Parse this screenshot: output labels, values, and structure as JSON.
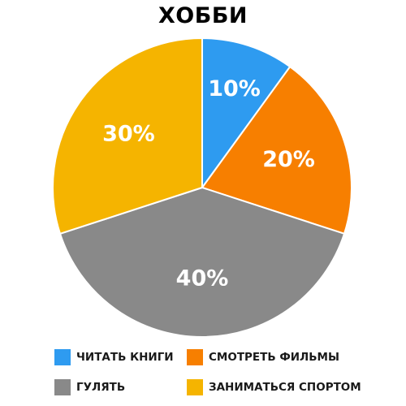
{
  "chart_data": {
    "type": "pie",
    "title": "ХОББИ",
    "categories": [
      "ЧИТАТЬ КНИГИ",
      "СМОТРЕТЬ ФИЛЬМЫ",
      "ГУЛЯТЬ",
      "ЗАНИМАТЬСЯ СПОРТОМ"
    ],
    "values": [
      10,
      20,
      40,
      30
    ],
    "data_labels": [
      "10%",
      "20%",
      "40%",
      "30%"
    ],
    "colors": [
      "#2E9BF0",
      "#F77F00",
      "#898989",
      "#F5B400"
    ],
    "legend_position": "bottom"
  }
}
